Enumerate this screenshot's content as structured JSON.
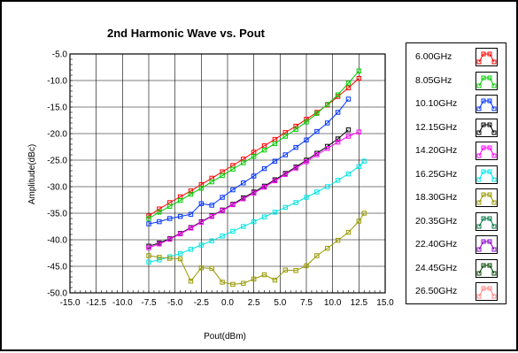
{
  "chart_data": {
    "type": "line",
    "title": "2nd Harmonic Wave vs. Pout",
    "xlabel": "Pout(dBm)",
    "ylabel": "Amplitude(dBc)",
    "xlim": [
      -15,
      15
    ],
    "ylim": [
      -50,
      -5
    ],
    "x_ticks": [
      "-15.0",
      "-12.5",
      "-10.0",
      "-7.5",
      "-5.0",
      "-2.5",
      "0.0",
      "2.5",
      "5.0",
      "7.5",
      "10.0",
      "12.5",
      "15.0"
    ],
    "y_ticks": [
      "-5.0",
      "-10.0",
      "-15.0",
      "-20.0",
      "-25.0",
      "-30.0",
      "-35.0",
      "-40.0",
      "-45.0",
      "-50.0"
    ],
    "grid": true,
    "legend_position": "right",
    "series": [
      {
        "name": "6.00GHz",
        "color": "#ff0000",
        "x": [
          -7.5,
          -6.5,
          -5.5,
          -4.5,
          -3.5,
          -2.5,
          -1.5,
          -0.5,
          0.5,
          1.5,
          2.5,
          3.5,
          4.5,
          5.5,
          6.5,
          7.5,
          8.5,
          9.5,
          10.5,
          11.5,
          12.5
        ],
        "y": [
          -35.5,
          -34.2,
          -33,
          -31.9,
          -30.8,
          -29.6,
          -28.4,
          -27.2,
          -26,
          -24.8,
          -23.5,
          -22.3,
          -21.1,
          -19.8,
          -18.6,
          -17.3,
          -16,
          -14.6,
          -13,
          -11.4,
          -9.6
        ]
      },
      {
        "name": "8.05GHz",
        "color": "#00cc00",
        "x": [
          -7.5,
          -6.5,
          -5.5,
          -4.5,
          -3.5,
          -2.5,
          -1.5,
          -0.5,
          0.5,
          1.5,
          2.5,
          3.5,
          4.5,
          5.5,
          6.5,
          7.5,
          8.5,
          9.5,
          10.5,
          11.5,
          12.5
        ],
        "y": [
          -36,
          -34.8,
          -33.7,
          -32.6,
          -31.4,
          -30.3,
          -29.1,
          -27.9,
          -26.7,
          -25.5,
          -24.3,
          -23.1,
          -21.9,
          -20.5,
          -19.2,
          -17.8,
          -16.2,
          -14.5,
          -12.7,
          -10.5,
          -8.2
        ]
      },
      {
        "name": "10.10GHz",
        "color": "#0033ff",
        "x": [
          -7.5,
          -6.5,
          -5.5,
          -4.5,
          -3.5,
          -2.5,
          -1.5,
          -0.5,
          0.5,
          1.5,
          2.5,
          3.5,
          4.5,
          5.5,
          6.5,
          7.5,
          8.5,
          9.5,
          10.5,
          11.5
        ],
        "y": [
          -37,
          -36.6,
          -36,
          -35.6,
          -35.2,
          -33.2,
          -33.5,
          -32,
          -30.6,
          -29.3,
          -28,
          -26.6,
          -25.2,
          -24,
          -22.6,
          -21.2,
          -19.6,
          -18,
          -16,
          -13.5
        ]
      },
      {
        "name": "12.15GHz",
        "color": "#000000",
        "x": [
          -7.5,
          -6.5,
          -5.5,
          -4.5,
          -3.5,
          -2.5,
          -1.5,
          -0.5,
          0.5,
          1.5,
          2.5,
          3.5,
          4.5,
          5.5,
          6.5,
          7.5,
          8.5,
          9.5,
          10.5,
          11.5
        ],
        "y": [
          -41.2,
          -40.6,
          -39.8,
          -38.8,
          -37.7,
          -36.6,
          -35.5,
          -34.4,
          -33.3,
          -32.1,
          -31,
          -29.9,
          -28.7,
          -27.5,
          -26.3,
          -25,
          -23.7,
          -22.4,
          -21,
          -19.3
        ]
      },
      {
        "name": "14.20GHz",
        "color": "#ff00ff",
        "x": [
          -7.5,
          -6.5,
          -5.5,
          -4.5,
          -3.5,
          -2.5,
          -1.5,
          -0.5,
          0.5,
          1.5,
          2.5,
          3.5,
          4.5,
          5.5,
          6.5,
          7.5,
          8.5,
          9.5,
          10.5,
          11.5,
          12.5
        ],
        "y": [
          -41.5,
          -40.8,
          -39.9,
          -38.9,
          -37.8,
          -36.7,
          -35.6,
          -34.5,
          -33.4,
          -32.3,
          -31.2,
          -30.1,
          -28.9,
          -27.7,
          -26.5,
          -25.3,
          -24,
          -22.8,
          -21.6,
          -20.5,
          -19.7
        ]
      },
      {
        "name": "16.25GHz",
        "color": "#00e5e5",
        "x": [
          -7.5,
          -6.5,
          -5.5,
          -4.5,
          -3.5,
          -2.5,
          -1.5,
          -0.5,
          0.5,
          1.5,
          2.5,
          3.5,
          4.5,
          5.5,
          6.5,
          7.5,
          8.5,
          9.5,
          10.5,
          11.5,
          12.5,
          13
        ],
        "y": [
          -44.2,
          -43.8,
          -43.2,
          -42.6,
          -41.8,
          -41,
          -40.2,
          -39.3,
          -38.4,
          -37.5,
          -36.6,
          -35.7,
          -34.8,
          -33.9,
          -33,
          -32,
          -31,
          -30,
          -28.8,
          -27.6,
          -26.2,
          -25.2
        ]
      },
      {
        "name": "18.30GHz",
        "color": "#999900",
        "x": [
          -7.5,
          -6.5,
          -5.5,
          -4.5,
          -3.5,
          -2.5,
          -1.5,
          -0.5,
          0.5,
          1.5,
          2.5,
          3.5,
          4.5,
          5.5,
          6.5,
          7.5,
          8.5,
          9.5,
          10.5,
          11.5,
          12.5,
          13
        ],
        "y": [
          -43,
          -43.3,
          -43.5,
          -43.6,
          -47.8,
          -45.3,
          -45.4,
          -48,
          -48.4,
          -48.2,
          -47.4,
          -46.6,
          -47.6,
          -45.7,
          -45.8,
          -44.9,
          -43,
          -41.6,
          -40.1,
          -38.6,
          -36.5,
          -35
        ]
      }
    ]
  },
  "legend": {
    "entries": [
      {
        "label": "6.00GHz",
        "color": "#ff0000"
      },
      {
        "label": "8.05GHz",
        "color": "#00cc00"
      },
      {
        "label": "10.10GHz",
        "color": "#0033ff"
      },
      {
        "label": "12.15GHz",
        "color": "#000000"
      },
      {
        "label": "14.20GHz",
        "color": "#ff00ff"
      },
      {
        "label": "16.25GHz",
        "color": "#00e5e5"
      },
      {
        "label": "18.30GHz",
        "color": "#999900"
      },
      {
        "label": "20.35GHz",
        "color": "#007744"
      },
      {
        "label": "22.40GHz",
        "color": "#8800cc"
      },
      {
        "label": "24.45GHz",
        "color": "#004400"
      },
      {
        "label": "26.50GHz",
        "color": "#ff8888"
      }
    ]
  }
}
